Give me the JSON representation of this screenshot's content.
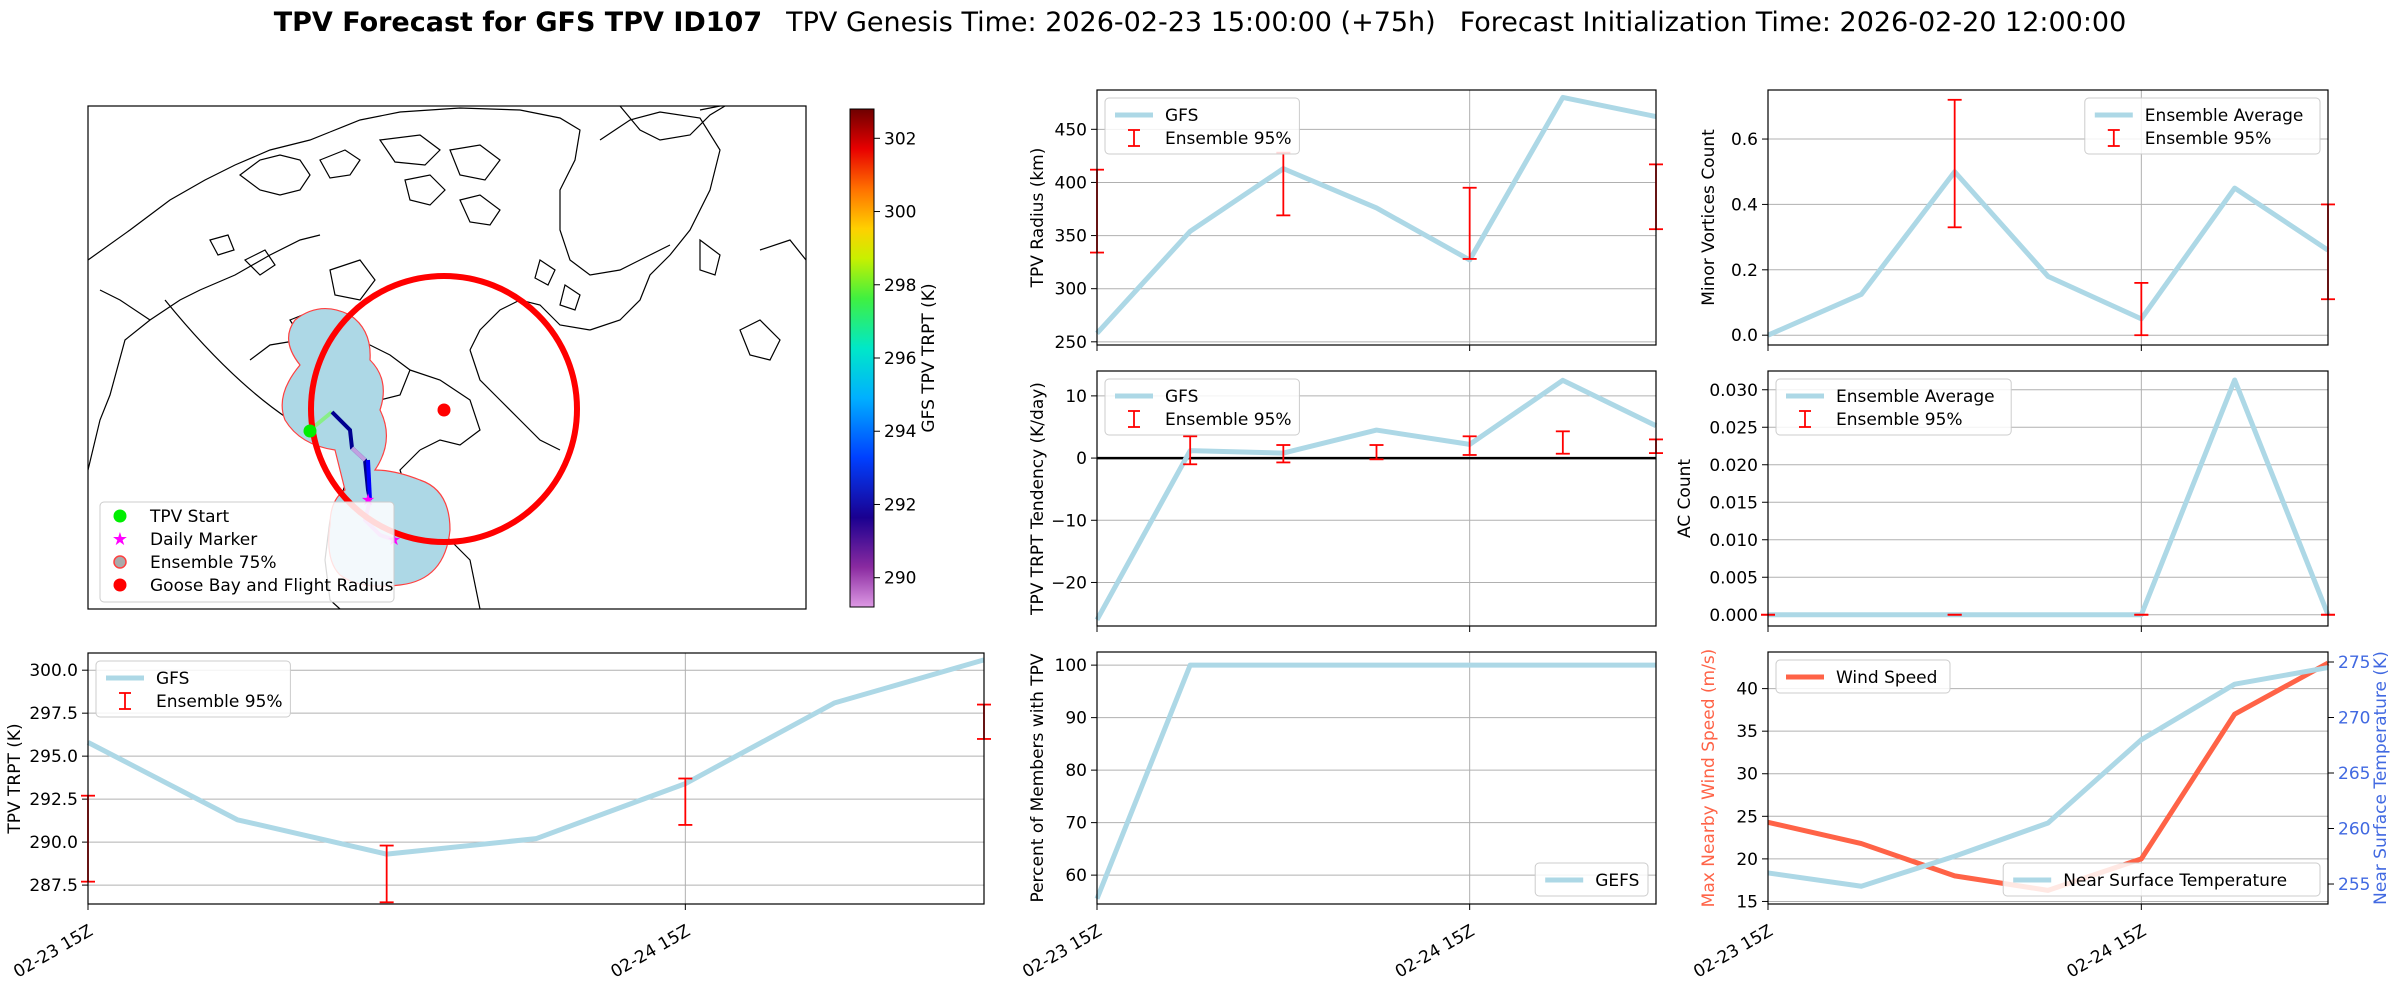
{
  "title": {
    "bold": "TPV Forecast for GFS TPV ID107",
    "genesis": "TPV Genesis Time: 2026-02-23 15:00:00 (+75h)",
    "init": "Forecast Initialization Time: 2026-02-20 12:00:00"
  },
  "map": {
    "legend": [
      "TPV Start",
      "Daily Marker",
      "Ensemble 75%",
      "Goose Bay and Flight Radius"
    ],
    "colorbar": {
      "label": "GFS TPV TRPT (K)",
      "ticks": [
        290,
        292,
        294,
        296,
        298,
        300,
        302
      ],
      "range": [
        289.2,
        302.8
      ]
    }
  },
  "colors": {
    "gfs_line": "#add8e6",
    "error_bar": "#ff0000",
    "wind": "#ff6347",
    "temp_axis": "#4169e1",
    "start": "#00ee00",
    "daily": "#ff00ff",
    "goose_bay": "#ff0000"
  },
  "chart_data": [
    {
      "id": "trpt",
      "type": "line",
      "xlabel": "",
      "ylabel": "TPV TRPT (K)",
      "x": [
        0,
        1,
        2,
        3,
        4,
        5,
        6
      ],
      "xlim": [
        0,
        6
      ],
      "ylim": [
        286.4,
        301.0
      ],
      "yticks": [
        287.5,
        290.0,
        292.5,
        295.0,
        297.5,
        300.0
      ],
      "ytick_labels": [
        "287.5",
        "290.0",
        "292.5",
        "295.0",
        "297.5",
        "300.0"
      ],
      "xticks": [
        0,
        4
      ],
      "xtick_labels": [
        "02-23 15Z",
        "02-24 15Z"
      ],
      "series": [
        {
          "name": "GFS",
          "values": [
            295.8,
            291.3,
            289.3,
            290.2,
            293.4,
            298.1,
            300.6
          ]
        }
      ],
      "errorbars": {
        "name": "Ensemble 95%",
        "x": [
          0,
          2,
          4,
          6
        ],
        "low": [
          287.7,
          286.5,
          291.0,
          296.0
        ],
        "high": [
          292.7,
          289.8,
          293.7,
          298.0
        ]
      },
      "legend": "top-left"
    },
    {
      "id": "radius",
      "type": "line",
      "xlabel": "",
      "ylabel": "TPV Radius (km)",
      "x": [
        0,
        1,
        2,
        3,
        4,
        5,
        6
      ],
      "xlim": [
        0,
        6
      ],
      "ylim": [
        247,
        487
      ],
      "yticks": [
        250,
        300,
        350,
        400,
        450
      ],
      "ytick_labels": [
        "250",
        "300",
        "350",
        "400",
        "450"
      ],
      "xticks": [
        0,
        4
      ],
      "xtick_labels": [
        "",
        ""
      ],
      "series": [
        {
          "name": "GFS",
          "values": [
            258,
            354,
            413,
            376,
            327,
            480,
            462
          ]
        }
      ],
      "errorbars": {
        "name": "Ensemble 95%",
        "x": [
          0,
          2,
          4,
          6
        ],
        "low": [
          334,
          369,
          328,
          356
        ],
        "high": [
          412,
          428,
          395,
          417
        ]
      },
      "legend": "top-left"
    },
    {
      "id": "minor",
      "type": "line",
      "xlabel": "",
      "ylabel": "Minor Vortices Count",
      "x": [
        0,
        1,
        2,
        3,
        4,
        5,
        6
      ],
      "xlim": [
        0,
        6
      ],
      "ylim": [
        -0.03,
        0.75
      ],
      "yticks": [
        0.0,
        0.2,
        0.4,
        0.6
      ],
      "ytick_labels": [
        "0.0",
        "0.2",
        "0.4",
        "0.6"
      ],
      "xticks": [
        0,
        4
      ],
      "xtick_labels": [
        "",
        ""
      ],
      "series": [
        {
          "name": "Ensemble Average",
          "values": [
            0.0,
            0.125,
            0.5,
            0.18,
            0.05,
            0.45,
            0.26
          ]
        }
      ],
      "errorbars": {
        "name": "Ensemble 95%",
        "x": [
          2,
          4,
          6
        ],
        "low": [
          0.33,
          0.0,
          0.11
        ],
        "high": [
          0.72,
          0.16,
          0.4
        ]
      },
      "legend": "top-right"
    },
    {
      "id": "tendency",
      "type": "line",
      "xlabel": "",
      "ylabel": "TPV TRPT Tendency (K/day)",
      "x": [
        0,
        1,
        2,
        3,
        4,
        5,
        6
      ],
      "xlim": [
        0,
        6
      ],
      "ylim": [
        -27,
        14
      ],
      "yticks": [
        -20,
        -10,
        0,
        10
      ],
      "ytick_labels": [
        "−20",
        "−10",
        "0",
        "10"
      ],
      "xticks": [
        0,
        4
      ],
      "xtick_labels": [
        "",
        ""
      ],
      "series": [
        {
          "name": "GFS",
          "values": [
            -26,
            1.2,
            0.8,
            4.5,
            2.2,
            12.5,
            5.2
          ]
        }
      ],
      "zero_line": true,
      "errorbars": {
        "name": "Ensemble 95%",
        "x": [
          1,
          2,
          3,
          4,
          5,
          6
        ],
        "low": [
          -1.0,
          -0.7,
          -0.2,
          0.5,
          0.7,
          0.8
        ],
        "high": [
          3.5,
          2.1,
          2.1,
          3.5,
          4.3,
          3.0
        ]
      },
      "legend": "top-left"
    },
    {
      "id": "ac",
      "type": "line",
      "xlabel": "",
      "ylabel": "AC Count",
      "x": [
        0,
        1,
        2,
        3,
        4,
        5,
        6
      ],
      "xlim": [
        0,
        6
      ],
      "ylim": [
        -0.0015,
        0.0325
      ],
      "yticks": [
        0.0,
        0.005,
        0.01,
        0.015,
        0.02,
        0.025,
        0.03
      ],
      "ytick_labels": [
        "0.000",
        "0.005",
        "0.010",
        "0.015",
        "0.020",
        "0.025",
        "0.030"
      ],
      "xticks": [
        0,
        4
      ],
      "xtick_labels": [
        "",
        ""
      ],
      "series": [
        {
          "name": "Ensemble Average",
          "values": [
            0.0,
            0.0,
            0.0,
            0.0,
            0.0,
            0.0313,
            0.0
          ]
        }
      ],
      "errorbars": {
        "name": "Ensemble 95%",
        "x": [
          0,
          2,
          4,
          6
        ],
        "low": [
          0,
          0,
          0,
          0
        ],
        "high": [
          0,
          0,
          0,
          0
        ]
      },
      "legend": "top-left"
    },
    {
      "id": "percent",
      "type": "line",
      "xlabel": "",
      "ylabel": "Percent of Members with TPV",
      "x": [
        0,
        1,
        2,
        3,
        4,
        5,
        6
      ],
      "xlim": [
        0,
        6
      ],
      "ylim": [
        54.5,
        102.5
      ],
      "yticks": [
        60,
        70,
        80,
        90,
        100
      ],
      "ytick_labels": [
        "60",
        "70",
        "80",
        "90",
        "100"
      ],
      "xticks": [
        0,
        4
      ],
      "xtick_labels": [
        "02-23 15Z",
        "02-24 15Z"
      ],
      "series": [
        {
          "name": "GEFS",
          "values": [
            55.5,
            100,
            100,
            100,
            100,
            100,
            100
          ]
        }
      ],
      "legend": "bottom-right"
    },
    {
      "id": "wind_temp",
      "type": "line",
      "xlabel": "",
      "ylabel": "Max Nearby Wind Speed (m/s)",
      "ylabel_right": "Near Surface Temperature (K)",
      "x": [
        0,
        1,
        2,
        3,
        4,
        5,
        6
      ],
      "xlim": [
        0,
        6
      ],
      "ylim": [
        14.7,
        44.3
      ],
      "ylim_right": [
        253.2,
        275.9
      ],
      "yticks": [
        15,
        20,
        25,
        30,
        35,
        40
      ],
      "ytick_labels": [
        "15",
        "20",
        "25",
        "30",
        "35",
        "40"
      ],
      "yticks_right": [
        255,
        260,
        265,
        270,
        275
      ],
      "ytick_labels_right": [
        "255",
        "260",
        "265",
        "270",
        "275"
      ],
      "xticks": [
        0,
        4
      ],
      "xtick_labels": [
        "02-23 15Z",
        "02-24 15Z"
      ],
      "series": [
        {
          "name": "Wind Speed",
          "axis": "left",
          "values": [
            24.3,
            21.8,
            18.0,
            16.3,
            20.0,
            37.0,
            43.0
          ]
        },
        {
          "name": "Near Surface Temperature",
          "axis": "right",
          "values": [
            256.0,
            254.8,
            257.5,
            260.5,
            268.0,
            273.0,
            274.5
          ]
        }
      ],
      "legend": "top-left / bottom-right"
    }
  ]
}
